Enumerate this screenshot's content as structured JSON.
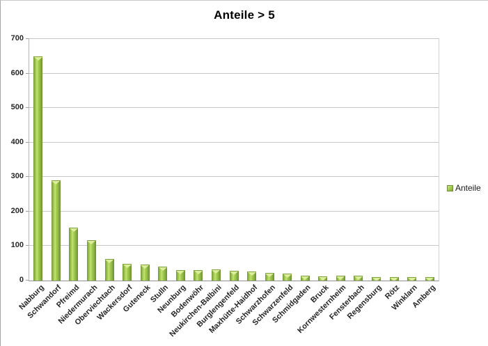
{
  "chart_data": {
    "type": "bar",
    "title": "Anteile > 5",
    "categories": [
      "Nabburg",
      "Schwandorf",
      "Pfreimd",
      "Niedermurach",
      "Oberviechtach",
      "Wackersdorf",
      "Guteneck",
      "Stulln",
      "Neunburg",
      "Bodenwöhr",
      "Neukirchen-Balbini",
      "Burglengenfeld",
      "Maxhütte-Haidhof",
      "Schwarzhofen",
      "Schwarzenfeld",
      "Schmidgaden",
      "Bruck",
      "Kornwesternheim",
      "Fensterbach",
      "Regensburg",
      "Rötz",
      "Winklarn",
      "Amberg"
    ],
    "series": [
      {
        "name": "Anteile",
        "values": [
          650,
          290,
          153,
          117,
          62,
          48,
          46,
          41,
          31,
          31,
          32,
          28,
          26,
          23,
          21,
          15,
          13,
          14,
          14,
          11,
          11,
          11,
          10
        ]
      }
    ],
    "xlabel": "",
    "ylabel": "",
    "ylim": [
      0,
      700
    ],
    "ytick_interval": 100,
    "yticks": [
      0,
      100,
      200,
      300,
      400,
      500,
      600,
      700
    ],
    "grid": true,
    "legend": {
      "position": "right",
      "entries": [
        "Anteile"
      ]
    },
    "colors": {
      "bar_fill": "#9cc54a",
      "bar_edge": "#6f8f36",
      "gridline": "#c6c6c6",
      "axis_line": "#8f8f8f",
      "text": "#262626",
      "title_text": "#000000"
    }
  }
}
